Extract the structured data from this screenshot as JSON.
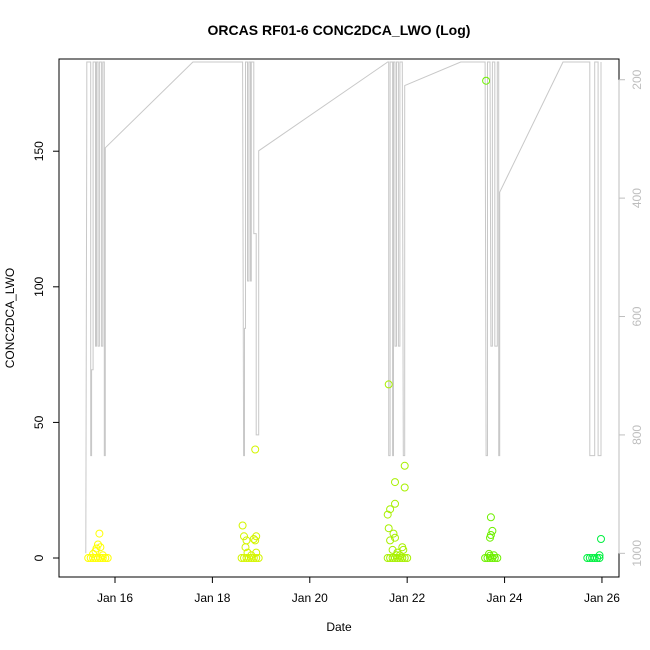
{
  "chart_data": {
    "type": "scatter",
    "title": "ORCAS RF01-6 CONC2DCA_LWO (Log)",
    "xlabel": "Date",
    "ylabel": "CONC2DCA_LWO",
    "x_axis": {
      "type": "date",
      "ticks": [
        "Jan 16",
        "Jan 18",
        "Jan 20",
        "Jan 22",
        "Jan 24",
        "Jan 26"
      ],
      "tick_days": [
        16,
        18,
        20,
        22,
        24,
        26
      ],
      "range_days": [
        14.85,
        26.35
      ]
    },
    "y_axis": {
      "range": [
        -7,
        184
      ],
      "ticks": [
        0,
        50,
        100,
        150
      ]
    },
    "y2_axis": {
      "reversed": true,
      "range": [
        1040,
        165
      ],
      "ticks": [
        200,
        400,
        600,
        800,
        1000
      ],
      "color": "#bebebe"
    },
    "series": [
      {
        "color": "#ffff00",
        "points": [
          [
            15.45,
            0
          ],
          [
            15.5,
            0
          ],
          [
            15.55,
            0
          ],
          [
            15.6,
            0
          ],
          [
            15.65,
            0
          ],
          [
            15.7,
            0
          ],
          [
            15.75,
            0
          ],
          [
            15.8,
            0
          ],
          [
            15.85,
            0
          ],
          [
            15.55,
            1.5
          ],
          [
            15.6,
            2.5
          ],
          [
            15.62,
            3.5
          ],
          [
            15.65,
            5
          ],
          [
            15.7,
            4
          ],
          [
            15.68,
            9
          ],
          [
            15.75,
            1
          ]
        ]
      },
      {
        "color": "#d4f500",
        "points": [
          [
            18.6,
            0
          ],
          [
            18.65,
            0
          ],
          [
            18.7,
            0
          ],
          [
            18.75,
            0
          ],
          [
            18.8,
            0
          ],
          [
            18.85,
            0
          ],
          [
            18.9,
            0
          ],
          [
            18.95,
            0
          ],
          [
            18.62,
            12
          ],
          [
            18.65,
            8
          ],
          [
            18.7,
            6.5
          ],
          [
            18.68,
            4
          ],
          [
            18.72,
            2
          ],
          [
            18.8,
            1
          ],
          [
            18.85,
            7
          ],
          [
            18.9,
            8
          ],
          [
            18.88,
            6.5
          ],
          [
            18.9,
            2
          ],
          [
            18.88,
            40
          ]
        ]
      },
      {
        "color": "#a8f000",
        "points": [
          [
            21.6,
            0
          ],
          [
            21.65,
            0
          ],
          [
            21.7,
            0
          ],
          [
            21.75,
            0
          ],
          [
            21.8,
            0
          ],
          [
            21.85,
            0
          ],
          [
            21.9,
            0
          ],
          [
            21.95,
            0
          ],
          [
            22.0,
            0
          ],
          [
            21.62,
            64
          ],
          [
            21.65,
            18
          ],
          [
            21.6,
            16
          ],
          [
            21.62,
            11
          ],
          [
            21.65,
            6.5
          ],
          [
            21.7,
            3
          ],
          [
            21.72,
            9
          ],
          [
            21.75,
            7.5
          ],
          [
            21.75,
            20
          ],
          [
            21.75,
            28
          ],
          [
            21.78,
            1
          ],
          [
            21.8,
            2
          ],
          [
            21.85,
            1
          ],
          [
            21.92,
            3
          ],
          [
            21.95,
            34
          ],
          [
            21.95,
            26
          ],
          [
            21.9,
            4
          ]
        ]
      },
      {
        "color": "#6ef000",
        "points": [
          [
            23.6,
            0
          ],
          [
            23.65,
            0
          ],
          [
            23.7,
            0
          ],
          [
            23.75,
            0
          ],
          [
            23.8,
            0
          ],
          [
            23.85,
            0
          ],
          [
            23.62,
            176
          ],
          [
            23.72,
            15
          ],
          [
            23.7,
            7.5
          ],
          [
            23.75,
            10
          ],
          [
            23.72,
            8.5
          ],
          [
            23.78,
            1
          ],
          [
            23.7,
            0.8
          ],
          [
            23.68,
            1.5
          ]
        ]
      },
      {
        "color": "#00f040",
        "points": [
          [
            25.7,
            0
          ],
          [
            25.75,
            0
          ],
          [
            25.8,
            0
          ],
          [
            25.85,
            0
          ],
          [
            25.9,
            0
          ],
          [
            25.95,
            0
          ],
          [
            25.95,
            1
          ],
          [
            25.98,
            7
          ]
        ]
      }
    ],
    "altitude_line": {
      "color": "#c8c8c8",
      "points": [
        [
          15.4,
          1000
        ],
        [
          15.42,
          250
        ],
        [
          15.42,
          170
        ],
        [
          15.5,
          170
        ],
        [
          15.5,
          835
        ],
        [
          15.52,
          835
        ],
        [
          15.52,
          690
        ],
        [
          15.55,
          690
        ],
        [
          15.55,
          170
        ],
        [
          15.6,
          170
        ],
        [
          15.6,
          650
        ],
        [
          15.62,
          650
        ],
        [
          15.62,
          170
        ],
        [
          15.65,
          170
        ],
        [
          15.65,
          650
        ],
        [
          15.68,
          650
        ],
        [
          15.68,
          170
        ],
        [
          15.72,
          170
        ],
        [
          15.72,
          650
        ],
        [
          15.75,
          650
        ],
        [
          15.75,
          170
        ],
        [
          15.78,
          170
        ],
        [
          15.78,
          835
        ],
        [
          15.8,
          835
        ],
        [
          15.8,
          315
        ],
        [
          17.6,
          170
        ],
        [
          18.62,
          170
        ],
        [
          18.64,
          835
        ],
        [
          18.66,
          835
        ],
        [
          18.66,
          620
        ],
        [
          18.68,
          620
        ],
        [
          18.68,
          170
        ],
        [
          18.7,
          170
        ],
        [
          18.72,
          170
        ],
        [
          18.72,
          540
        ],
        [
          18.75,
          540
        ],
        [
          18.75,
          170
        ],
        [
          18.78,
          170
        ],
        [
          18.78,
          540
        ],
        [
          18.8,
          540
        ],
        [
          18.8,
          170
        ],
        [
          18.85,
          170
        ],
        [
          18.85,
          460
        ],
        [
          18.9,
          460
        ],
        [
          18.9,
          800
        ],
        [
          18.95,
          800
        ],
        [
          18.95,
          320
        ],
        [
          21.6,
          170
        ],
        [
          21.62,
          170
        ],
        [
          21.62,
          835
        ],
        [
          21.65,
          835
        ],
        [
          21.65,
          170
        ],
        [
          21.7,
          170
        ],
        [
          21.7,
          835
        ],
        [
          21.72,
          835
        ],
        [
          21.72,
          170
        ],
        [
          21.75,
          170
        ],
        [
          21.75,
          650
        ],
        [
          21.78,
          650
        ],
        [
          21.78,
          170
        ],
        [
          21.82,
          170
        ],
        [
          21.82,
          650
        ],
        [
          21.85,
          650
        ],
        [
          21.85,
          170
        ],
        [
          21.9,
          170
        ],
        [
          21.92,
          835
        ],
        [
          21.95,
          835
        ],
        [
          21.95,
          210
        ],
        [
          23.1,
          170
        ],
        [
          23.6,
          170
        ],
        [
          23.62,
          835
        ],
        [
          23.65,
          835
        ],
        [
          23.65,
          170
        ],
        [
          23.7,
          170
        ],
        [
          23.72,
          650
        ],
        [
          23.75,
          650
        ],
        [
          23.75,
          170
        ],
        [
          23.8,
          170
        ],
        [
          23.8,
          650
        ],
        [
          23.85,
          650
        ],
        [
          23.85,
          170
        ],
        [
          23.88,
          170
        ],
        [
          23.88,
          835
        ],
        [
          23.9,
          835
        ],
        [
          23.9,
          390
        ],
        [
          25.2,
          170
        ],
        [
          25.75,
          170
        ],
        [
          25.75,
          835
        ],
        [
          25.85,
          835
        ],
        [
          25.85,
          170
        ],
        [
          25.92,
          170
        ],
        [
          25.92,
          835
        ],
        [
          25.98,
          835
        ],
        [
          25.98,
          170
        ]
      ]
    }
  }
}
